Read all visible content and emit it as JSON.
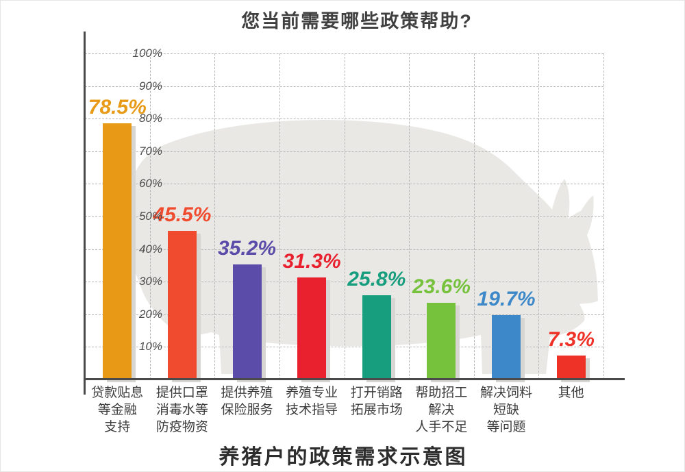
{
  "page": {
    "top_title": "您当前需要哪些政策帮助?",
    "bottom_title": "养猪户的政策需求示意图",
    "watermark": "pig-silhouette"
  },
  "chart_data": {
    "type": "bar",
    "title": "您当前需要哪些政策帮助?",
    "footer_title": "养猪户的政策需求示意图",
    "categories": [
      "贷款贴息 等金融 支持",
      "提供口罩 消毒水等 防疫物资",
      "提供养殖 保险服务",
      "养殖专业 技术指导",
      "打开销路 拓展市场",
      "帮助招工 解决 人手不足",
      "解决饲料 短缺 等问题",
      "其他"
    ],
    "category_lines": [
      [
        "贷款贴息",
        "等金融",
        "支持"
      ],
      [
        "提供口罩",
        "消毒水等",
        "防疫物资"
      ],
      [
        "提供养殖",
        "保险服务"
      ],
      [
        "养殖专业",
        "技术指导"
      ],
      [
        "打开销路",
        "拓展市场"
      ],
      [
        "帮助招工",
        "解决",
        "人手不足"
      ],
      [
        "解决饲料",
        "短缺",
        "等问题"
      ],
      [
        "其他"
      ]
    ],
    "values": [
      78.5,
      45.5,
      35.2,
      31.3,
      25.8,
      23.6,
      19.7,
      7.3
    ],
    "value_labels": [
      "78.5%",
      "45.5%",
      "35.2%",
      "31.3%",
      "25.8%",
      "23.6%",
      "19.7%",
      "7.3%"
    ],
    "bar_colors": [
      "#E89A16",
      "#F04B2F",
      "#5A4CA8",
      "#E9212E",
      "#169E7E",
      "#76C23D",
      "#3C88C9",
      "#EE3227"
    ],
    "xlabel": "",
    "ylabel": "",
    "ylim": [
      0,
      100
    ],
    "y_tick_labels": [
      "100%",
      "90%",
      "80%",
      "70%",
      "60%",
      "50%",
      "40%",
      "30%",
      "20%",
      "10%"
    ],
    "grid": "dashed horizontal and vertical gridlines",
    "legend": "none",
    "style": {
      "axis_color": "#4a4a4a",
      "grid_color": "#b5b5b5",
      "bar_shadow_color": "#d8d6d3",
      "watermark_color": "#e9e8e5",
      "title_color": "#404040",
      "footer_title_color": "#2d2d2d",
      "tick_label_color": "#4d4d4d",
      "category_label_color": "#3c3c3c"
    }
  }
}
